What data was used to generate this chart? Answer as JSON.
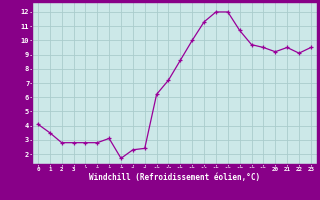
{
  "x": [
    0,
    1,
    2,
    3,
    4,
    5,
    6,
    7,
    8,
    9,
    10,
    11,
    12,
    13,
    14,
    15,
    16,
    17,
    18,
    19,
    20,
    21,
    22,
    23
  ],
  "y": [
    4.1,
    3.5,
    2.8,
    2.8,
    2.8,
    2.8,
    3.1,
    1.7,
    2.3,
    2.4,
    6.2,
    7.2,
    8.6,
    10.0,
    11.3,
    12.0,
    12.0,
    10.7,
    9.7,
    9.5,
    9.2,
    9.5,
    9.1,
    9.5
  ],
  "line_color": "#990099",
  "marker": "+",
  "marker_size": 3,
  "bg_color": "#cce8e8",
  "grid_color": "#aacccc",
  "xlabel": "Windchill (Refroidissement éolien,°C)",
  "xlabel_color": "#ffffff",
  "xlabel_bg": "#880088",
  "ylabel_ticks": [
    2,
    3,
    4,
    5,
    6,
    7,
    8,
    9,
    10,
    11,
    12
  ],
  "xtick_labels": [
    "0",
    "1",
    "2",
    "3",
    "4",
    "5",
    "6",
    "7",
    "8",
    "9",
    "10",
    "11",
    "12",
    "13",
    "14",
    "15",
    "16",
    "17",
    "18",
    "19",
    "20",
    "21",
    "22",
    "23"
  ],
  "xlim": [
    -0.5,
    23.5
  ],
  "ylim": [
    1.3,
    12.7
  ],
  "tick_color": "#ffffff",
  "spine_color": "#880088",
  "figsize": [
    3.2,
    2.0
  ],
  "dpi": 100
}
